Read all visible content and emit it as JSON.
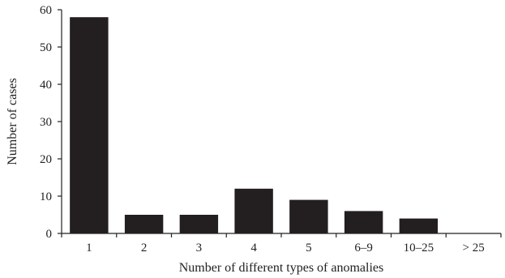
{
  "chart_data": {
    "type": "bar",
    "categories": [
      "1",
      "2",
      "3",
      "4",
      "5",
      "6–9",
      "10–25",
      "> 25"
    ],
    "values": [
      58,
      5,
      5,
      12,
      9,
      6,
      4,
      0
    ],
    "xlabel": "Number of different types of anomalies",
    "ylabel": "Number of cases",
    "ylim": [
      0,
      60
    ],
    "yticks": [
      0,
      10,
      20,
      30,
      40,
      50,
      60
    ],
    "grid": false,
    "bar_color": "#231f20"
  }
}
